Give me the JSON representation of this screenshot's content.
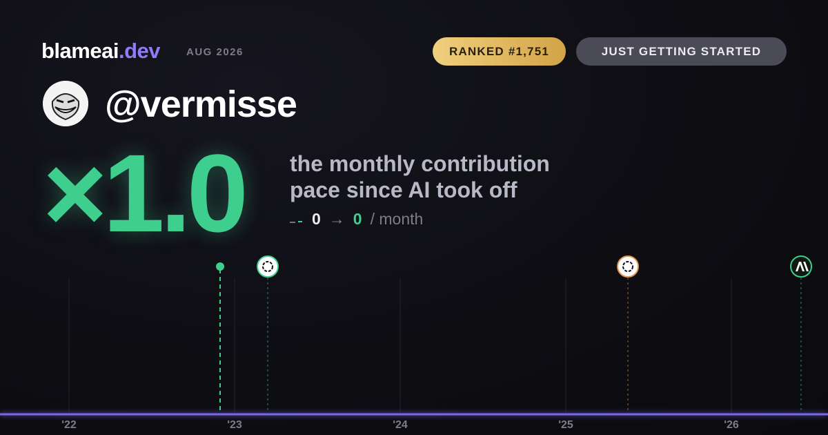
{
  "brand": {
    "name": "blameai",
    "tld": ".dev",
    "date": "AUG 2026"
  },
  "badges": {
    "rank": "RANKED #1,751",
    "status": "JUST GETTING STARTED"
  },
  "user": {
    "handle": "@vermisse"
  },
  "stat": {
    "multiplier": "×1.0",
    "caption_line1": "the monthly contribution",
    "caption_line2": "pace since AI took off",
    "from": "0",
    "arrow": "→",
    "to": "0",
    "unit": "/ month"
  },
  "timeline": {
    "years": [
      "'22",
      "'23",
      "'24",
      "'25",
      "'26"
    ]
  }
}
